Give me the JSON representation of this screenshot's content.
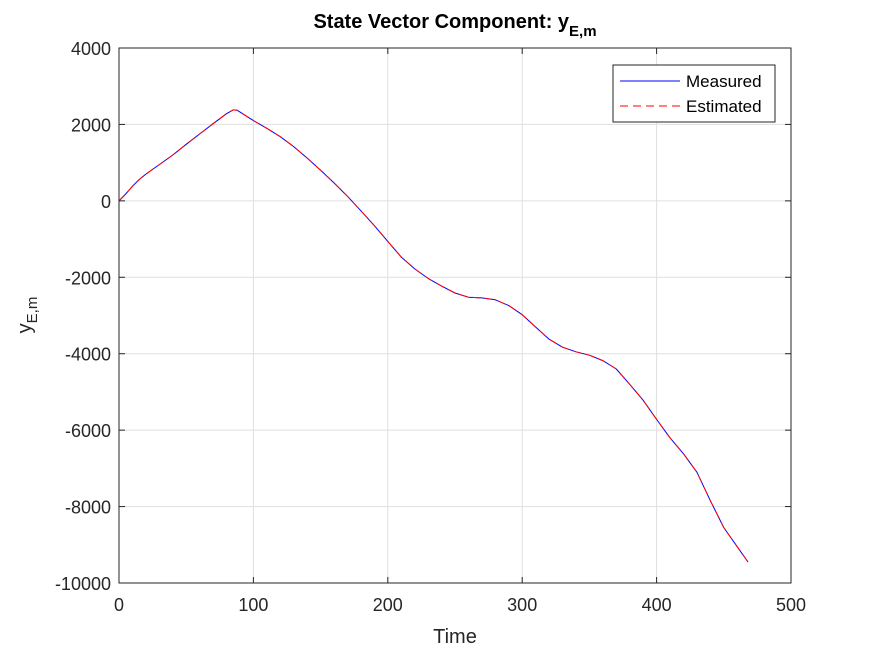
{
  "chart_data": {
    "type": "line",
    "title": "State Vector Component: ",
    "title_symbol": "y",
    "title_subscript": "E,m",
    "xlabel": "Time",
    "ylabel_symbol": "y",
    "ylabel_subscript": "E,m",
    "xlim": [
      0,
      500
    ],
    "ylim": [
      -10000,
      4000
    ],
    "xticks": [
      0,
      100,
      200,
      300,
      400,
      500
    ],
    "xtick_labels": [
      "0",
      "100",
      "200",
      "300",
      "400",
      "500"
    ],
    "yticks": [
      -10000,
      -8000,
      -6000,
      -4000,
      -2000,
      0,
      2000,
      4000
    ],
    "ytick_labels": [
      "-10000",
      "-8000",
      "-6000",
      "-4000",
      "-2000",
      "0",
      "2000",
      "4000"
    ],
    "grid": true,
    "legend_position": "top-right",
    "series": [
      {
        "name": "Measured",
        "color": "#0000ff",
        "style": "solid",
        "x": [
          0,
          5,
          10,
          15,
          20,
          30,
          40,
          50,
          60,
          70,
          80,
          85,
          88,
          92,
          100,
          110,
          120,
          130,
          140,
          150,
          160,
          170,
          180,
          190,
          200,
          210,
          220,
          230,
          240,
          250,
          260,
          270,
          280,
          290,
          300,
          310,
          320,
          330,
          340,
          350,
          360,
          370,
          380,
          390,
          400,
          410,
          420,
          430,
          440,
          450,
          460,
          468
        ],
        "y": [
          0,
          180,
          380,
          560,
          700,
          950,
          1200,
          1480,
          1750,
          2020,
          2280,
          2380,
          2370,
          2280,
          2100,
          1900,
          1680,
          1420,
          1120,
          800,
          470,
          120,
          -260,
          -650,
          -1060,
          -1470,
          -1780,
          -2030,
          -2230,
          -2410,
          -2520,
          -2540,
          -2590,
          -2740,
          -2980,
          -3300,
          -3620,
          -3830,
          -3950,
          -4040,
          -4180,
          -4400,
          -4800,
          -5220,
          -5720,
          -6200,
          -6620,
          -7100,
          -7850,
          -8550,
          -9050,
          -9450
        ]
      },
      {
        "name": "Estimated",
        "color": "#ff0000",
        "style": "dashed",
        "x": [
          0,
          5,
          10,
          15,
          20,
          30,
          40,
          50,
          60,
          70,
          80,
          85,
          88,
          92,
          100,
          110,
          120,
          130,
          140,
          150,
          160,
          170,
          180,
          190,
          200,
          210,
          220,
          230,
          240,
          250,
          260,
          270,
          280,
          290,
          300,
          310,
          320,
          330,
          340,
          350,
          360,
          370,
          380,
          390,
          400,
          410,
          420,
          430,
          440,
          450,
          460,
          468
        ],
        "y": [
          0,
          180,
          380,
          560,
          700,
          950,
          1200,
          1480,
          1750,
          2020,
          2280,
          2380,
          2370,
          2280,
          2100,
          1900,
          1680,
          1420,
          1120,
          800,
          470,
          120,
          -260,
          -650,
          -1060,
          -1470,
          -1780,
          -2030,
          -2230,
          -2410,
          -2520,
          -2540,
          -2590,
          -2740,
          -2980,
          -3300,
          -3620,
          -3830,
          -3950,
          -4040,
          -4180,
          -4400,
          -4800,
          -5220,
          -5720,
          -6200,
          -6620,
          -7100,
          -7850,
          -8550,
          -9050,
          -9450
        ]
      }
    ]
  }
}
